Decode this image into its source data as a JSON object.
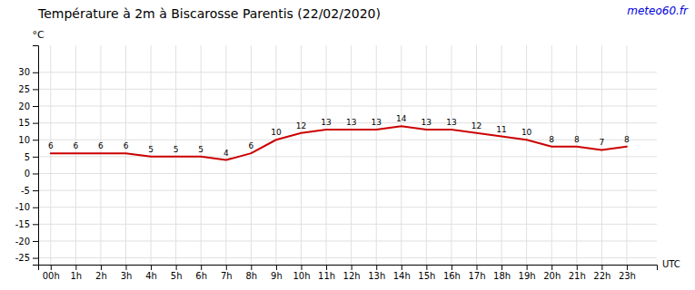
{
  "chart_data": {
    "type": "line",
    "title": "Température à 2m à Biscarosse Parentis (22/02/2020)",
    "xlabel": "UTC",
    "ylabel": "°C",
    "annotations": [
      {
        "text": "meteo60.fr",
        "color": "#0000dd"
      }
    ],
    "x": [
      0,
      1,
      2,
      3,
      4,
      5,
      6,
      7,
      8,
      9,
      10,
      11,
      12,
      13,
      14,
      15,
      16,
      17,
      18,
      19,
      20,
      21,
      22,
      23
    ],
    "values": [
      6,
      6,
      6,
      6,
      5,
      5,
      5,
      4,
      6,
      10,
      12,
      13,
      13,
      13,
      14,
      13,
      13,
      12,
      11,
      10,
      8,
      8,
      7,
      8
    ],
    "color": "#cc0000",
    "data_labels": true,
    "grid": true,
    "xlim": [
      -0.5,
      24.2
    ],
    "xticks": [
      {
        "value": 0,
        "label": "00h"
      },
      {
        "value": 1,
        "label": "1h"
      },
      {
        "value": 2,
        "label": "2h"
      },
      {
        "value": 3,
        "label": "3h"
      },
      {
        "value": 4,
        "label": "4h"
      },
      {
        "value": 5,
        "label": "5h"
      },
      {
        "value": 6,
        "label": "6h"
      },
      {
        "value": 7,
        "label": "7h"
      },
      {
        "value": 8,
        "label": "8h"
      },
      {
        "value": 9,
        "label": "9h"
      },
      {
        "value": 10,
        "label": "10h"
      },
      {
        "value": 11,
        "label": "11h"
      },
      {
        "value": 12,
        "label": "12h"
      },
      {
        "value": 13,
        "label": "13h"
      },
      {
        "value": 14,
        "label": "14h"
      },
      {
        "value": 15,
        "label": "15h"
      },
      {
        "value": 16,
        "label": "16h"
      },
      {
        "value": 17,
        "label": "17h"
      },
      {
        "value": 18,
        "label": "18h"
      },
      {
        "value": 19,
        "label": "19h"
      },
      {
        "value": 20,
        "label": "20h"
      },
      {
        "value": 21,
        "label": "21h"
      },
      {
        "value": 22,
        "label": "22h"
      },
      {
        "value": 23,
        "label": "23h"
      }
    ],
    "ylim": [
      -27,
      38
    ],
    "yticks": [
      30,
      25,
      20,
      15,
      10,
      5,
      0,
      -5,
      -10,
      -15,
      -20,
      -25
    ]
  }
}
